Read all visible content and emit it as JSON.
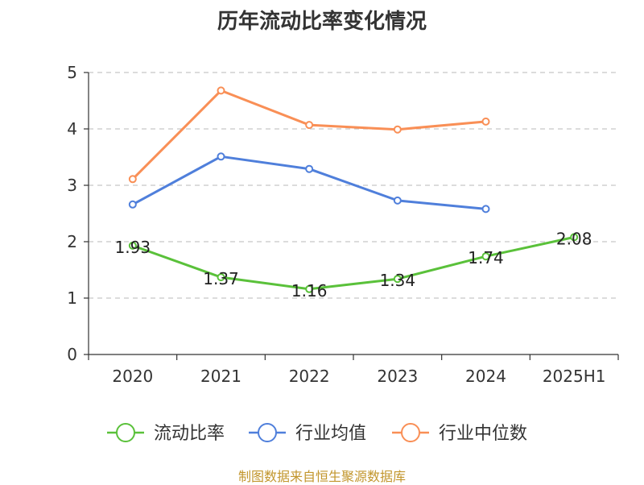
{
  "chart_data": {
    "type": "line",
    "title": "历年流动比率变化情况",
    "categories": [
      "2020",
      "2021",
      "2022",
      "2023",
      "2024",
      "2025H1"
    ],
    "ylim": [
      0,
      5
    ],
    "yticks": [
      "0",
      "1",
      "2",
      "3",
      "4",
      "5"
    ],
    "grid": true,
    "legend_position": "bottom",
    "series": [
      {
        "name": "流动比率",
        "color": "#5ac13a",
        "values": [
          1.93,
          1.37,
          1.16,
          1.34,
          1.74,
          2.08
        ],
        "labels": [
          "1.93",
          "1.37",
          "1.16",
          "1.34",
          "1.74",
          "2.08"
        ]
      },
      {
        "name": "行业均值",
        "color": "#4f7fdb",
        "values": [
          2.66,
          3.51,
          3.29,
          2.73,
          2.58,
          null
        ]
      },
      {
        "name": "行业中位数",
        "color": "#f98f56",
        "values": [
          3.11,
          4.68,
          4.07,
          3.99,
          4.13,
          null
        ]
      }
    ]
  },
  "source": "制图数据来自恒生聚源数据库"
}
